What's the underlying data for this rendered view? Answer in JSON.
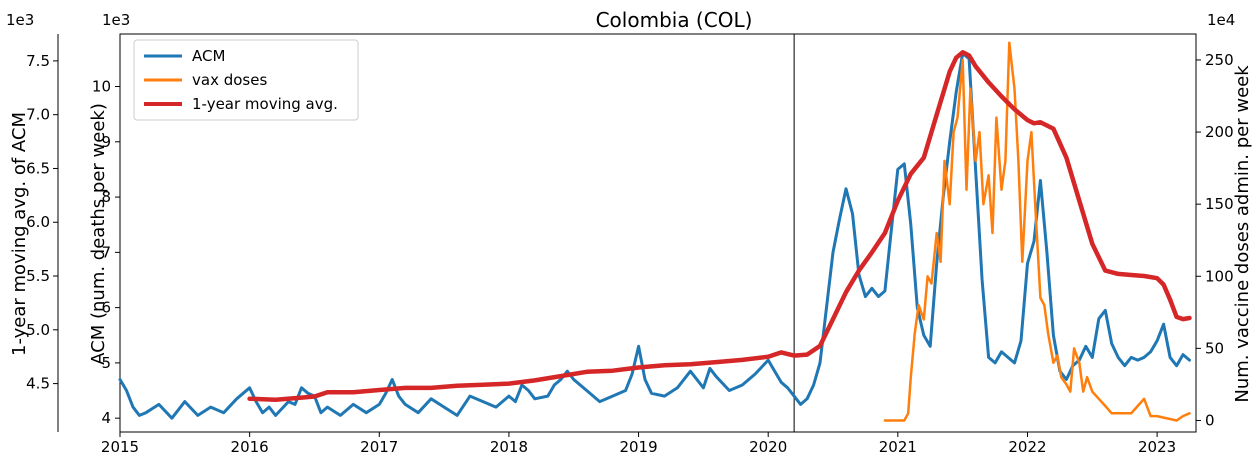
{
  "chart_data": {
    "type": "line",
    "title": "Colombia (COL)",
    "xlabel": "",
    "x_ticks": [
      "2015",
      "2016",
      "2017",
      "2018",
      "2019",
      "2020",
      "2021",
      "2022",
      "2023"
    ],
    "xlim": [
      2015.0,
      2023.3
    ],
    "vline_x": 2020.2,
    "axes": {
      "left_outer": {
        "label": "1-year moving avg. of ACM",
        "exponent": "1e3",
        "ticks": [
          "4.5",
          "5.0",
          "5.5",
          "6.0",
          "6.5",
          "7.0",
          "7.5"
        ],
        "ylim": [
          4.05,
          7.75
        ]
      },
      "left": {
        "label": "ACM (num. deaths per week)",
        "exponent": "1e3",
        "ticks": [
          "4",
          "5",
          "6",
          "7",
          "8",
          "9",
          "10"
        ],
        "ylim": [
          3.75,
          10.95
        ]
      },
      "right": {
        "label": "Num. vaccine doses admin. per week",
        "exponent": "1e4",
        "ticks": [
          "0",
          "50",
          "100",
          "150",
          "200",
          "250"
        ],
        "ylim": [
          -8,
          268
        ]
      }
    },
    "legend": {
      "placement": "top-left",
      "entries": [
        "ACM",
        "vax doses",
        "1-year moving avg."
      ]
    },
    "series": [
      {
        "name": "ACM",
        "axis": "left",
        "color": "#1f77b4",
        "x": [
          2015.0,
          2015.05,
          2015.1,
          2015.15,
          2015.2,
          2015.3,
          2015.4,
          2015.5,
          2015.6,
          2015.7,
          2015.8,
          2015.9,
          2016.0,
          2016.05,
          2016.1,
          2016.15,
          2016.2,
          2016.3,
          2016.35,
          2016.4,
          2016.45,
          2016.5,
          2016.55,
          2016.6,
          2016.7,
          2016.8,
          2016.9,
          2017.0,
          2017.05,
          2017.1,
          2017.15,
          2017.2,
          2017.3,
          2017.4,
          2017.5,
          2017.6,
          2017.7,
          2017.8,
          2017.9,
          2018.0,
          2018.05,
          2018.1,
          2018.15,
          2018.2,
          2018.3,
          2018.35,
          2018.4,
          2018.45,
          2018.5,
          2018.6,
          2018.7,
          2018.8,
          2018.9,
          2018.95,
          2019.0,
          2019.05,
          2019.1,
          2019.2,
          2019.3,
          2019.4,
          2019.5,
          2019.55,
          2019.6,
          2019.7,
          2019.8,
          2019.9,
          2020.0,
          2020.05,
          2020.1,
          2020.15,
          2020.2,
          2020.25,
          2020.3,
          2020.35,
          2020.4,
          2020.45,
          2020.5,
          2020.55,
          2020.6,
          2020.65,
          2020.7,
          2020.75,
          2020.8,
          2020.85,
          2020.9,
          2020.95,
          2021.0,
          2021.05,
          2021.1,
          2021.15,
          2021.2,
          2021.25,
          2021.3,
          2021.35,
          2021.4,
          2021.45,
          2021.5,
          2021.55,
          2021.6,
          2021.65,
          2021.7,
          2021.75,
          2021.8,
          2021.85,
          2021.9,
          2021.95,
          2022.0,
          2022.05,
          2022.1,
          2022.15,
          2022.2,
          2022.25,
          2022.3,
          2022.35,
          2022.4,
          2022.45,
          2022.5,
          2022.55,
          2022.6,
          2022.65,
          2022.7,
          2022.75,
          2022.8,
          2022.85,
          2022.9,
          2022.95,
          2023.0,
          2023.05,
          2023.1,
          2023.15,
          2023.2,
          2023.25
        ],
        "values": [
          4.7,
          4.5,
          4.2,
          4.05,
          4.1,
          4.25,
          4.0,
          4.3,
          4.05,
          4.2,
          4.1,
          4.35,
          4.55,
          4.3,
          4.1,
          4.2,
          4.05,
          4.3,
          4.25,
          4.55,
          4.45,
          4.4,
          4.1,
          4.2,
          4.05,
          4.25,
          4.1,
          4.25,
          4.45,
          4.7,
          4.4,
          4.25,
          4.1,
          4.35,
          4.2,
          4.05,
          4.4,
          4.3,
          4.2,
          4.4,
          4.3,
          4.6,
          4.5,
          4.35,
          4.4,
          4.6,
          4.7,
          4.85,
          4.7,
          4.5,
          4.3,
          4.4,
          4.5,
          4.8,
          5.3,
          4.7,
          4.45,
          4.4,
          4.55,
          4.85,
          4.55,
          4.9,
          4.75,
          4.5,
          4.6,
          4.8,
          5.05,
          4.85,
          4.65,
          4.55,
          4.4,
          4.25,
          4.35,
          4.6,
          5.0,
          6.0,
          7.0,
          7.6,
          8.15,
          7.7,
          6.6,
          6.2,
          6.35,
          6.2,
          6.3,
          7.4,
          8.5,
          8.6,
          7.5,
          6.0,
          5.5,
          5.3,
          6.8,
          8.0,
          9.0,
          9.9,
          10.6,
          10.5,
          8.5,
          6.5,
          5.1,
          5.0,
          5.2,
          5.1,
          5.0,
          5.4,
          6.8,
          7.2,
          8.3,
          7.0,
          5.5,
          4.85,
          4.7,
          4.95,
          5.05,
          5.3,
          5.1,
          5.8,
          5.95,
          5.35,
          5.1,
          4.95,
          5.1,
          5.05,
          5.1,
          5.2,
          5.4,
          5.7,
          5.1,
          4.95,
          5.15,
          5.05
        ]
      },
      {
        "name": "vax doses",
        "axis": "right",
        "color": "#ff7f0e",
        "x": [
          2020.9,
          2020.95,
          2021.0,
          2021.05,
          2021.08,
          2021.1,
          2021.13,
          2021.16,
          2021.2,
          2021.23,
          2021.26,
          2021.3,
          2021.33,
          2021.36,
          2021.4,
          2021.43,
          2021.46,
          2021.5,
          2021.53,
          2021.56,
          2021.6,
          2021.63,
          2021.66,
          2021.7,
          2021.73,
          2021.76,
          2021.8,
          2021.83,
          2021.86,
          2021.9,
          2021.93,
          2021.96,
          2022.0,
          2022.03,
          2022.06,
          2022.1,
          2022.13,
          2022.16,
          2022.2,
          2022.23,
          2022.26,
          2022.3,
          2022.33,
          2022.36,
          2022.4,
          2022.43,
          2022.46,
          2022.5,
          2022.55,
          2022.6,
          2022.65,
          2022.7,
          2022.75,
          2022.8,
          2022.85,
          2022.9,
          2022.95,
          2023.0,
          2023.05,
          2023.1,
          2023.15,
          2023.2,
          2023.25
        ],
        "values": [
          0,
          0,
          0,
          0,
          5,
          30,
          60,
          80,
          70,
          100,
          95,
          130,
          110,
          180,
          150,
          200,
          210,
          250,
          160,
          230,
          180,
          200,
          150,
          170,
          130,
          210,
          160,
          180,
          262,
          230,
          180,
          110,
          180,
          200,
          150,
          85,
          80,
          60,
          40,
          45,
          30,
          25,
          20,
          50,
          40,
          20,
          30,
          20,
          15,
          10,
          5,
          5,
          5,
          5,
          10,
          15,
          3,
          3,
          2,
          1,
          0,
          3,
          5
        ]
      },
      {
        "name": "1-year moving avg.",
        "axis": "left_outer",
        "color": "#d62728",
        "x": [
          2016.0,
          2016.2,
          2016.4,
          2016.5,
          2016.6,
          2016.8,
          2017.0,
          2017.2,
          2017.4,
          2017.6,
          2017.8,
          2018.0,
          2018.2,
          2018.4,
          2018.6,
          2018.8,
          2019.0,
          2019.2,
          2019.4,
          2019.6,
          2019.8,
          2020.0,
          2020.1,
          2020.2,
          2020.3,
          2020.4,
          2020.5,
          2020.6,
          2020.7,
          2020.8,
          2020.9,
          2021.0,
          2021.1,
          2021.2,
          2021.3,
          2021.4,
          2021.45,
          2021.5,
          2021.55,
          2021.6,
          2021.7,
          2021.8,
          2021.9,
          2022.0,
          2022.05,
          2022.1,
          2022.2,
          2022.3,
          2022.4,
          2022.5,
          2022.6,
          2022.7,
          2022.8,
          2022.9,
          2023.0,
          2023.05,
          2023.1,
          2023.15,
          2023.2,
          2023.25
        ],
        "values": [
          4.36,
          4.35,
          4.37,
          4.38,
          4.42,
          4.42,
          4.44,
          4.46,
          4.46,
          4.48,
          4.49,
          4.5,
          4.53,
          4.57,
          4.61,
          4.62,
          4.65,
          4.67,
          4.68,
          4.7,
          4.72,
          4.75,
          4.79,
          4.76,
          4.77,
          4.85,
          5.1,
          5.35,
          5.55,
          5.72,
          5.9,
          6.2,
          6.45,
          6.6,
          7.0,
          7.4,
          7.53,
          7.58,
          7.55,
          7.45,
          7.3,
          7.17,
          7.05,
          6.95,
          6.92,
          6.93,
          6.87,
          6.6,
          6.2,
          5.8,
          5.55,
          5.52,
          5.51,
          5.5,
          5.48,
          5.42,
          5.28,
          5.12,
          5.1,
          5.11
        ]
      }
    ]
  }
}
